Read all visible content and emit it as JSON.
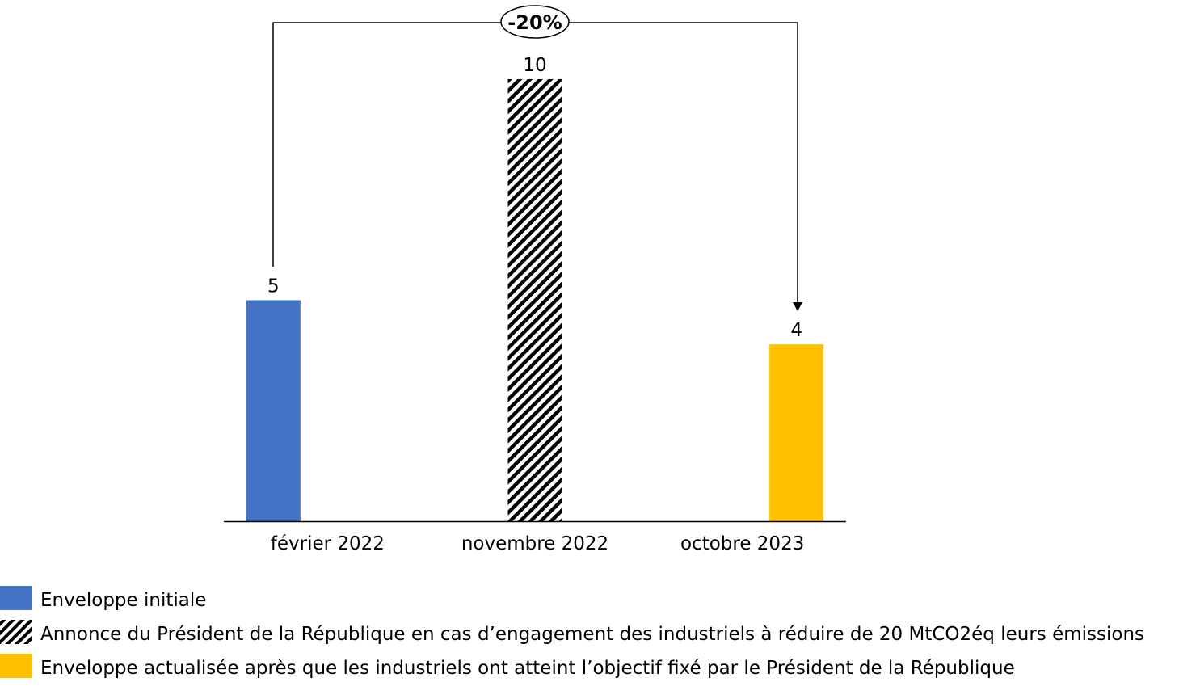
{
  "chart_data": {
    "type": "bar",
    "title": "",
    "xlabel": "",
    "ylabel": "",
    "ylim": [
      0,
      10
    ],
    "grid": false,
    "legend_position": "bottom-left",
    "categories": [
      "février 2022",
      "novembre 2022",
      "octobre 2023"
    ],
    "series": [
      {
        "name": "Enveloppe initiale",
        "values": [
          5,
          null,
          null
        ],
        "color": "#4472C4",
        "pattern": "solid"
      },
      {
        "name": "Annonce du Président de la République en cas d’engagement des industriels à réduire de 20 MtCO2éq leurs émissions",
        "values": [
          null,
          10,
          null
        ],
        "color": "#000000",
        "pattern": "diagonal-hatch"
      },
      {
        "name": "Enveloppe actualisée après que les industriels ont atteint l’objectif fixé par le Président de la République",
        "values": [
          null,
          null,
          4
        ],
        "color": "#FFC000",
        "pattern": "solid"
      }
    ],
    "data_labels": [
      "5",
      "10",
      "4"
    ],
    "annotation": {
      "text": "-20%",
      "from_category": "février 2022",
      "to_category": "octobre 2023"
    }
  }
}
